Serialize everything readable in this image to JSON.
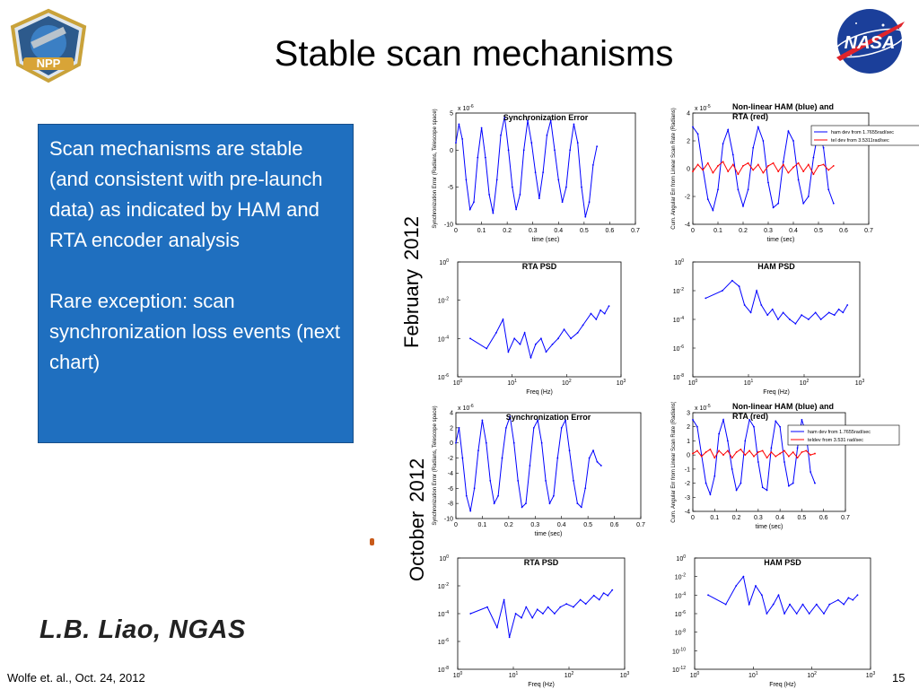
{
  "slide": {
    "title": "Stable scan mechanisms",
    "bullet_1": "Scan mechanisms are stable (and consistent with pre-launch data) as indicated by HAM and RTA encoder analysis",
    "bullet_2": "Rare exception: scan synchronization loss events (next chart)",
    "feb_month": "February",
    "feb_year": "2012",
    "oct_month": "October",
    "oct_year": "2012",
    "signature": "L.B. Liao, NGAS",
    "footer": "Wolfe et. al., Oct. 24, 2012",
    "page_number": "15",
    "npp_logo_text": "NPP",
    "nasa_logo_text": "NASA"
  },
  "colors": {
    "box_blue": "#1f6fbf",
    "series_blue": "#0000ff",
    "series_red": "#ff0000"
  },
  "chart_data": [
    {
      "id": "feb_sync",
      "type": "line",
      "title": "Synchronization Error",
      "xlabel": "time (sec)",
      "ylabel": "Synchronization Error (Radians, Telescope space)",
      "exponent_label": "x 10",
      "exponent": "-6",
      "xlim": [
        0,
        0.7
      ],
      "ylim": [
        -10,
        5
      ],
      "xticks": [
        "0",
        "0.1",
        "0.2",
        "0.3",
        "0.4",
        "0.5",
        "0.6",
        "0.7"
      ],
      "yticks": [
        "-10",
        "-5",
        "0",
        "5"
      ],
      "series": [
        {
          "name": "sync error",
          "color": "#0000ff",
          "x": [
            0,
            0.012,
            0.025,
            0.04,
            0.055,
            0.07,
            0.085,
            0.1,
            0.115,
            0.13,
            0.145,
            0.16,
            0.175,
            0.19,
            0.205,
            0.22,
            0.235,
            0.25,
            0.265,
            0.28,
            0.295,
            0.31,
            0.325,
            0.34,
            0.355,
            0.37,
            0.385,
            0.4,
            0.415,
            0.43,
            0.445,
            0.46,
            0.475,
            0.49,
            0.505,
            0.52,
            0.535,
            0.55
          ],
          "y": [
            1,
            3.5,
            1.5,
            -4,
            -8,
            -7,
            -1,
            3,
            -1,
            -6,
            -8.5,
            -4,
            2,
            4.5,
            0,
            -5,
            -8,
            -6,
            0,
            4,
            1,
            -3,
            -6.5,
            -3,
            2,
            4,
            0,
            -4,
            -7,
            -5,
            0,
            3.5,
            1,
            -5,
            -9,
            -7,
            -2,
            0.5
          ]
        }
      ]
    },
    {
      "id": "feb_ham_rta",
      "type": "line",
      "title": "Non-linear HAM (blue) and RTA (red)",
      "xlabel": "time (sec)",
      "ylabel": "Cum. Angular Err from Linear Scan Rate (Radians)",
      "exponent_label": "x 10",
      "exponent": "-5",
      "xlim": [
        0,
        0.7
      ],
      "ylim": [
        -4,
        4
      ],
      "xticks": [
        "0",
        "0.1",
        "0.2",
        "0.3",
        "0.4",
        "0.5",
        "0.6",
        "0.7"
      ],
      "yticks": [
        "-4",
        "-2",
        "0",
        "2",
        "4"
      ],
      "legend": [
        "ham dev from 1.7655rad/sec",
        "tel dev from 3.5311rad/sec"
      ],
      "series": [
        {
          "name": "HAM",
          "color": "#0000ff",
          "x": [
            0,
            0.02,
            0.04,
            0.06,
            0.08,
            0.1,
            0.12,
            0.14,
            0.16,
            0.18,
            0.2,
            0.22,
            0.24,
            0.26,
            0.28,
            0.3,
            0.32,
            0.34,
            0.36,
            0.38,
            0.4,
            0.42,
            0.44,
            0.46,
            0.48,
            0.5,
            0.52,
            0.54,
            0.56
          ],
          "y": [
            3,
            2.5,
            0,
            -2.2,
            -3,
            -1.5,
            1.8,
            2.8,
            1,
            -1.5,
            -2.7,
            -1.5,
            1.5,
            3,
            2,
            -1,
            -2.8,
            -2.5,
            0.5,
            2.7,
            2,
            -0.8,
            -2.5,
            -2,
            0.8,
            2.8,
            1.5,
            -1.5,
            -2.5
          ]
        },
        {
          "name": "RTA",
          "color": "#ff0000",
          "x": [
            0,
            0.02,
            0.04,
            0.06,
            0.08,
            0.1,
            0.12,
            0.14,
            0.16,
            0.18,
            0.2,
            0.22,
            0.24,
            0.26,
            0.28,
            0.3,
            0.32,
            0.34,
            0.36,
            0.38,
            0.4,
            0.42,
            0.44,
            0.46,
            0.48,
            0.5,
            0.52,
            0.54,
            0.56
          ],
          "y": [
            -0.2,
            0.3,
            -0.1,
            0.4,
            -0.3,
            0.2,
            0.5,
            -0.2,
            0.3,
            -0.4,
            0.2,
            0.4,
            -0.1,
            0.3,
            -0.3,
            0.2,
            0.4,
            -0.2,
            0.3,
            -0.3,
            0.1,
            0.4,
            -0.2,
            0.3,
            -0.4,
            0.2,
            0.3,
            -0.1,
            0.2
          ]
        }
      ]
    },
    {
      "id": "feb_rta_psd",
      "type": "line",
      "title": "RTA PSD",
      "xlabel": "Freq (Hz)",
      "ylabel": "",
      "scale": "log-log",
      "xlim": [
        1,
        1000
      ],
      "ylim": [
        1e-06,
        1
      ],
      "xticks": [
        "10^0",
        "10^1",
        "10^2",
        "10^3"
      ],
      "yticks": [
        "10^0",
        "10^-2",
        "10^-4",
        "10^-6"
      ],
      "series": [
        {
          "name": "RTA PSD",
          "color": "#0000ff",
          "x": [
            1.7,
            3.4,
            5.1,
            6.8,
            8.5,
            11,
            14,
            17,
            22,
            27,
            34,
            42,
            55,
            70,
            90,
            120,
            160,
            200,
            280,
            350,
            420,
            500,
            600
          ],
          "y": [
            0.0001,
            3e-05,
            0.0002,
            0.001,
            2e-05,
            0.0001,
            5e-05,
            0.0002,
            1e-05,
            5e-05,
            0.0001,
            2e-05,
            5e-05,
            0.0001,
            0.0003,
            0.0001,
            0.0002,
            0.0005,
            0.002,
            0.001,
            0.003,
            0.002,
            0.005
          ]
        }
      ]
    },
    {
      "id": "feb_ham_psd",
      "type": "line",
      "title": "HAM PSD",
      "xlabel": "Freq (Hz)",
      "ylabel": "",
      "scale": "log-log",
      "xlim": [
        1,
        1000
      ],
      "ylim": [
        1e-08,
        1
      ],
      "xticks": [
        "10^0",
        "10^1",
        "10^2",
        "10^3"
      ],
      "yticks": [
        "10^0",
        "10^-2",
        "10^-4",
        "10^-6",
        "10^-8"
      ],
      "series": [
        {
          "name": "HAM PSD",
          "color": "#0000ff",
          "x": [
            1.7,
            3.4,
            5.1,
            6.8,
            8.5,
            11,
            14,
            17,
            22,
            27,
            34,
            42,
            55,
            70,
            90,
            120,
            160,
            200,
            280,
            350,
            420,
            500,
            600
          ],
          "y": [
            0.003,
            0.01,
            0.05,
            0.02,
            0.001,
            0.0003,
            0.01,
            0.001,
            0.0002,
            0.0005,
            0.0001,
            0.0003,
            0.0001,
            5e-05,
            0.0002,
            0.0001,
            0.0003,
            0.0001,
            0.0003,
            0.0002,
            0.0005,
            0.0003,
            0.001
          ]
        }
      ]
    },
    {
      "id": "oct_sync",
      "type": "line",
      "title": "Synchronization Error",
      "xlabel": "time (sec)",
      "ylabel": "Synchronization Error (Radians, Telescope space)",
      "exponent_label": "x 10",
      "exponent": "-6",
      "xlim": [
        0,
        0.7
      ],
      "ylim": [
        -10,
        4
      ],
      "xticks": [
        "0",
        "0.1",
        "0.2",
        "0.3",
        "0.4",
        "0.5",
        "0.6",
        "0.7"
      ],
      "yticks": [
        "-10",
        "-8",
        "-6",
        "-4",
        "-2",
        "0",
        "2",
        "4"
      ],
      "series": [
        {
          "name": "sync error",
          "color": "#0000ff",
          "x": [
            0,
            0.012,
            0.025,
            0.04,
            0.055,
            0.07,
            0.085,
            0.1,
            0.115,
            0.13,
            0.145,
            0.16,
            0.175,
            0.19,
            0.205,
            0.22,
            0.235,
            0.25,
            0.265,
            0.28,
            0.295,
            0.31,
            0.325,
            0.34,
            0.355,
            0.37,
            0.385,
            0.4,
            0.415,
            0.43,
            0.445,
            0.46,
            0.475,
            0.49,
            0.505,
            0.52,
            0.535,
            0.55
          ],
          "y": [
            0,
            2,
            -2,
            -7,
            -9,
            -6,
            -1,
            3,
            0,
            -5,
            -8,
            -7,
            -2,
            2,
            3.5,
            0,
            -5,
            -8.5,
            -8,
            -3,
            2,
            3,
            0,
            -5,
            -8,
            -7,
            -2,
            2,
            3,
            -1,
            -5,
            -8,
            -8.5,
            -6,
            -2,
            -1,
            -2.5,
            -3
          ]
        }
      ]
    },
    {
      "id": "oct_ham_rta",
      "type": "line",
      "title": "Non-linear HAM (blue) and RTA (red)",
      "xlabel": "time (sec)",
      "ylabel": "Cum. Angular Err from Linear Scan Rate (Radians)",
      "exponent_label": "x 10",
      "exponent": "-5",
      "xlim": [
        0,
        0.7
      ],
      "ylim": [
        -4,
        3
      ],
      "xticks": [
        "0",
        "0.1",
        "0.2",
        "0.3",
        "0.4",
        "0.5",
        "0.6",
        "0.7"
      ],
      "yticks": [
        "-4",
        "-3",
        "-2",
        "-1",
        "0",
        "1",
        "2",
        "3"
      ],
      "legend": [
        "ham dev from 1.7655rad/sec",
        "teldev from 3.531 rad/sec"
      ],
      "series": [
        {
          "name": "HAM",
          "color": "#0000ff",
          "x": [
            0,
            0.02,
            0.04,
            0.06,
            0.08,
            0.1,
            0.12,
            0.14,
            0.16,
            0.18,
            0.2,
            0.22,
            0.24,
            0.26,
            0.28,
            0.3,
            0.32,
            0.34,
            0.36,
            0.38,
            0.4,
            0.42,
            0.44,
            0.46,
            0.48,
            0.5,
            0.52,
            0.54,
            0.56
          ],
          "y": [
            2.5,
            2,
            0,
            -2,
            -2.8,
            -1.5,
            1.5,
            2.5,
            1,
            -1,
            -2.5,
            -2,
            1,
            2.5,
            2,
            -0.5,
            -2.3,
            -2.5,
            0.5,
            2.4,
            2,
            -0.5,
            -2.2,
            -2,
            0.5,
            2.5,
            1.5,
            -1.2,
            -2
          ]
        },
        {
          "name": "RTA",
          "color": "#ff0000",
          "x": [
            0,
            0.02,
            0.04,
            0.06,
            0.08,
            0.1,
            0.12,
            0.14,
            0.16,
            0.18,
            0.2,
            0.22,
            0.24,
            0.26,
            0.28,
            0.3,
            0.32,
            0.34,
            0.36,
            0.38,
            0.4,
            0.42,
            0.44,
            0.46,
            0.48,
            0.5,
            0.52,
            0.54,
            0.56
          ],
          "y": [
            0.1,
            0.3,
            -0.1,
            0.2,
            0.4,
            -0.2,
            0.3,
            0,
            0.3,
            -0.2,
            0.2,
            0.4,
            0,
            0.3,
            -0.1,
            0.2,
            0.3,
            -0.2,
            0.2,
            -0.1,
            0.1,
            0.3,
            -0.1,
            0.2,
            -0.2,
            0.2,
            0.3,
            0,
            0.1
          ]
        }
      ]
    },
    {
      "id": "oct_rta_psd",
      "type": "line",
      "title": "RTA PSD",
      "xlabel": "Freq (Hz)",
      "ylabel": "",
      "scale": "log-log",
      "xlim": [
        1,
        1000
      ],
      "ylim": [
        1e-08,
        1
      ],
      "xticks": [
        "10^0",
        "10^1",
        "10^2",
        "10^3"
      ],
      "yticks": [
        "10^0",
        "10^-2",
        "10^-4",
        "10^-6",
        "10^-8"
      ],
      "series": [
        {
          "name": "RTA PSD",
          "color": "#0000ff",
          "x": [
            1.7,
            3.4,
            5.1,
            6.8,
            8.5,
            11,
            14,
            17,
            22,
            27,
            34,
            42,
            55,
            70,
            90,
            120,
            160,
            200,
            280,
            350,
            420,
            500,
            600
          ],
          "y": [
            0.0001,
            0.0003,
            1e-05,
            0.001,
            2e-06,
            0.0001,
            5e-05,
            0.0003,
            5e-05,
            0.0002,
            0.0001,
            0.0003,
            0.0001,
            0.0003,
            0.0005,
            0.0003,
            0.001,
            0.0005,
            0.002,
            0.001,
            0.003,
            0.002,
            0.005
          ]
        }
      ]
    },
    {
      "id": "oct_ham_psd",
      "type": "line",
      "title": "HAM PSD",
      "xlabel": "Freq (Hz)",
      "ylabel": "",
      "scale": "log-log",
      "xlim": [
        1,
        1000
      ],
      "ylim": [
        1e-12,
        1
      ],
      "xticks": [
        "10^0",
        "10^1",
        "10^2",
        "10^3"
      ],
      "yticks": [
        "10^0",
        "10^-2",
        "10^-4",
        "10^-6",
        "10^-8",
        "10^-10",
        "10^-12"
      ],
      "series": [
        {
          "name": "HAM PSD",
          "color": "#0000ff",
          "x": [
            1.7,
            3.4,
            5.1,
            6.8,
            8.5,
            11,
            14,
            17,
            22,
            27,
            34,
            42,
            55,
            70,
            90,
            120,
            160,
            200,
            280,
            350,
            420,
            500,
            600
          ],
          "y": [
            0.0001,
            1e-05,
            0.001,
            0.01,
            1e-05,
            0.001,
            0.0001,
            1e-06,
            1e-05,
            0.0001,
            1e-06,
            1e-05,
            1e-06,
            1e-05,
            1e-06,
            1e-05,
            1e-06,
            1e-05,
            3e-05,
            1e-05,
            5e-05,
            3e-05,
            0.0001
          ]
        }
      ]
    }
  ]
}
